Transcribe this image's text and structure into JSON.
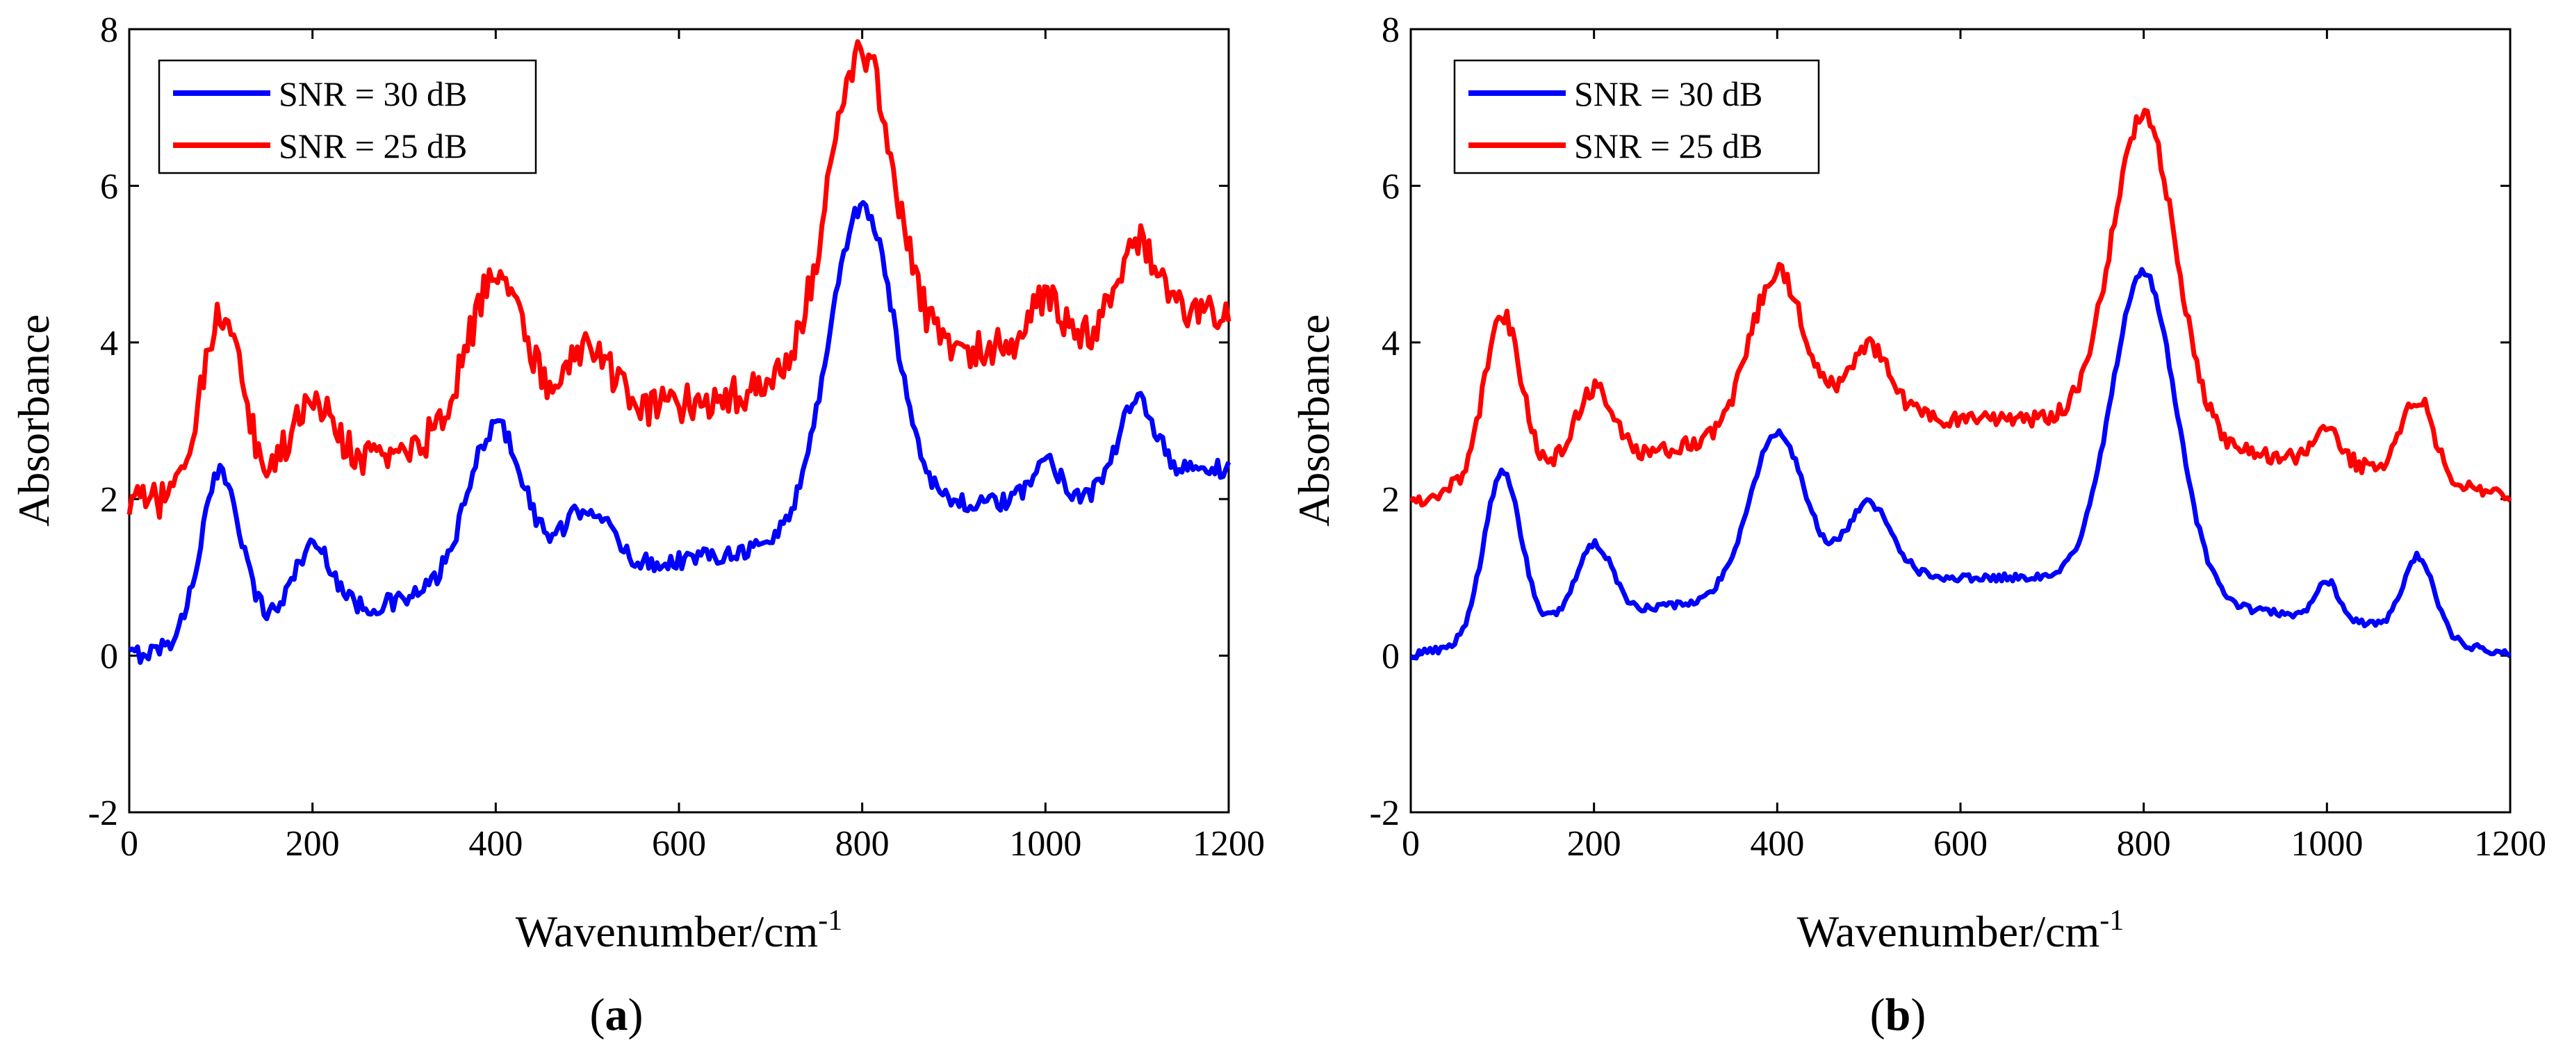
{
  "figure": {
    "panels": [
      {
        "id": "a",
        "label_open": "(",
        "label_letter": "a",
        "label_close": ")"
      },
      {
        "id": "b",
        "label_open": "(",
        "label_letter": "b",
        "label_close": ")"
      }
    ]
  },
  "chart_data": [
    {
      "type": "line",
      "panel": "a",
      "xlabel_base": "Wavenumber/cm",
      "xlabel_sup": "-1",
      "ylabel": "Absorbance",
      "xlim": [
        0,
        1200
      ],
      "ylim": [
        -2,
        8
      ],
      "xticks": [
        0,
        200,
        400,
        600,
        800,
        1000,
        1200
      ],
      "yticks": [
        -2,
        0,
        2,
        4,
        6,
        8
      ],
      "grid": false,
      "legend_position": "top-left",
      "series": [
        {
          "name": "SNR = 30 dB",
          "color": "#0000ff",
          "baseline": [
            [
              0,
              0.0
            ],
            [
              260,
              0.6
            ],
            [
              400,
              1.0
            ],
            [
              560,
              1.15
            ],
            [
              700,
              1.4
            ],
            [
              760,
              1.8
            ],
            [
              880,
              1.9
            ],
            [
              950,
              1.95
            ],
            [
              1050,
              2.05
            ],
            [
              1150,
              2.35
            ],
            [
              1200,
              2.4
            ]
          ],
          "peaks": [
            [
              100,
              2.1,
              22
            ],
            [
              200,
              0.95,
              22
            ],
            [
              400,
              1.95,
              30
            ],
            [
              500,
              0.8,
              25
            ],
            [
              800,
              3.9,
              35
            ],
            [
              1000,
              0.5,
              15
            ],
            [
              1100,
              1.05,
              20
            ]
          ],
          "noise": 0.12
        },
        {
          "name": "SNR = 25 dB",
          "color": "#ff0000",
          "baseline": [
            [
              0,
              1.9
            ],
            [
              260,
              2.5
            ],
            [
              400,
              2.95
            ],
            [
              560,
              3.15
            ],
            [
              700,
              3.4
            ],
            [
              760,
              3.8
            ],
            [
              880,
              3.85
            ],
            [
              950,
              3.95
            ],
            [
              1050,
              4.1
            ],
            [
              1150,
              4.35
            ],
            [
              1200,
              4.35
            ]
          ],
          "peaks": [
            [
              100,
              2.2,
              22
            ],
            [
              200,
              0.95,
              22
            ],
            [
              400,
              1.9,
              30
            ],
            [
              500,
              0.85,
              25
            ],
            [
              800,
              3.85,
              35
            ],
            [
              1000,
              0.55,
              15
            ],
            [
              1100,
              1.1,
              20
            ]
          ],
          "noise": 0.24
        }
      ]
    },
    {
      "type": "line",
      "panel": "b",
      "xlabel_base": "Wavenumber/cm",
      "xlabel_sup": "-1",
      "ylabel": "Absorbance",
      "xlim": [
        0,
        1200
      ],
      "ylim": [
        -2,
        8
      ],
      "xticks": [
        0,
        200,
        400,
        600,
        800,
        1000,
        1200
      ],
      "yticks": [
        -2,
        0,
        2,
        4,
        6,
        8
      ],
      "grid": false,
      "legend_position": "top-left",
      "series": [
        {
          "name": "SNR = 30 dB",
          "color": "#0000ff",
          "baseline": [
            [
              0,
              0.0
            ],
            [
              140,
              0.35
            ],
            [
              260,
              0.6
            ],
            [
              400,
              0.85
            ],
            [
              560,
              1.0
            ],
            [
              700,
              1.0
            ],
            [
              800,
              0.85
            ],
            [
              900,
              0.6
            ],
            [
              1050,
              0.4
            ],
            [
              1200,
              0.0
            ]
          ],
          "peaks": [
            [
              100,
              2.1,
              20
            ],
            [
              200,
              0.95,
              20
            ],
            [
              400,
              2.0,
              30
            ],
            [
              500,
              1.0,
              25
            ],
            [
              800,
              4.05,
              35
            ],
            [
              1000,
              0.5,
              13
            ],
            [
              1100,
              1.0,
              17
            ]
          ],
          "noise": 0.05
        },
        {
          "name": "SNR = 25 dB",
          "color": "#ff0000",
          "baseline": [
            [
              0,
              2.0
            ],
            [
              140,
              2.35
            ],
            [
              260,
              2.6
            ],
            [
              400,
              2.85
            ],
            [
              560,
              3.0
            ],
            [
              700,
              3.0
            ],
            [
              800,
              2.85
            ],
            [
              900,
              2.6
            ],
            [
              1050,
              2.4
            ],
            [
              1200,
              2.0
            ]
          ],
          "peaks": [
            [
              100,
              2.1,
              20
            ],
            [
              200,
              0.95,
              20
            ],
            [
              400,
              2.05,
              30
            ],
            [
              500,
              1.0,
              25
            ],
            [
              800,
              4.05,
              35
            ],
            [
              1000,
              0.5,
              13
            ],
            [
              1100,
              1.0,
              17
            ]
          ],
          "noise": 0.11
        }
      ]
    }
  ]
}
